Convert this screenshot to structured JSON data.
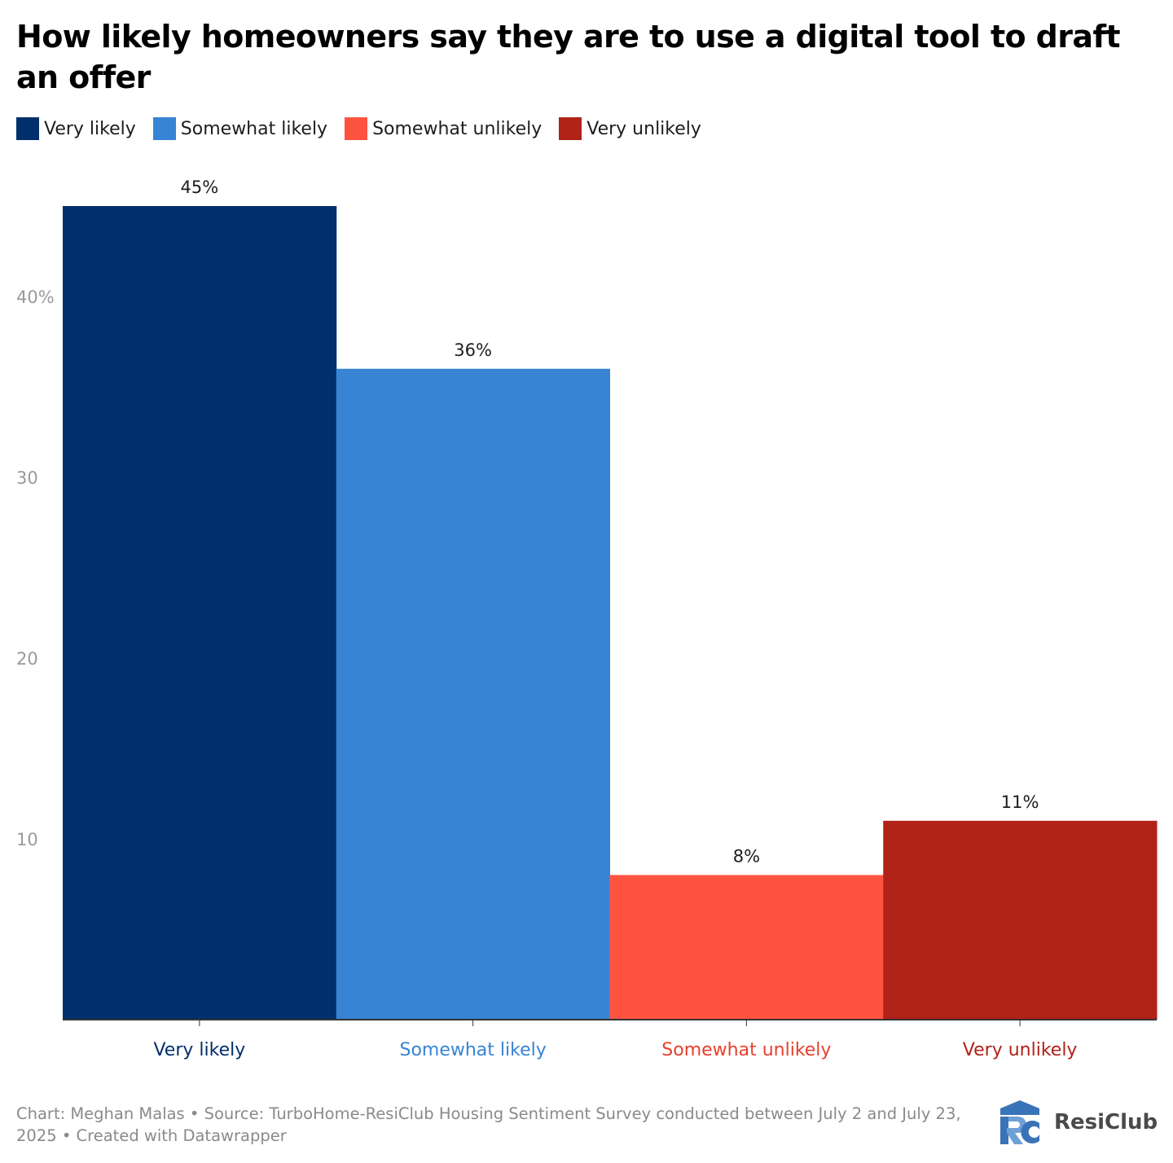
{
  "title": "How likely homeowners say they are to use a digital tool to draft an offer",
  "legend": [
    {
      "label": "Very likely",
      "color": "#002f6c"
    },
    {
      "label": "Somewhat likely",
      "color": "#3784d4"
    },
    {
      "label": "Somewhat unlikely",
      "color": "#fe543f"
    },
    {
      "label": "Very unlikely",
      "color": "#b12218"
    }
  ],
  "chart_data": {
    "type": "bar",
    "title": "How likely homeowners say they are to use a digital tool to draft an offer",
    "categories": [
      "Very likely",
      "Somewhat likely",
      "Somewhat unlikely",
      "Very unlikely"
    ],
    "values": [
      45,
      36,
      8,
      11
    ],
    "value_labels": [
      "45%",
      "36%",
      "8%",
      "11%"
    ],
    "colors": [
      "#002f6c",
      "#3784d4",
      "#fe543f",
      "#b12218"
    ],
    "category_label_colors": [
      "#002f6c",
      "#3784d4",
      "#e8402c",
      "#b12218"
    ],
    "ylim": [
      0,
      45
    ],
    "yticks": [
      10,
      20,
      30,
      40
    ],
    "ytick_labels": [
      "10",
      "20",
      "30",
      "40%"
    ],
    "xlabel": "",
    "ylabel": "",
    "grid": false
  },
  "footer": {
    "text": "Chart: Meghan Malas • Source: TurboHome-ResiClub Housing Sentiment Survey conducted between July 2 and July 23, 2025 • Created with Datawrapper"
  },
  "logo": {
    "text": "ResiClub",
    "icon": "resiclub-logo-icon"
  }
}
